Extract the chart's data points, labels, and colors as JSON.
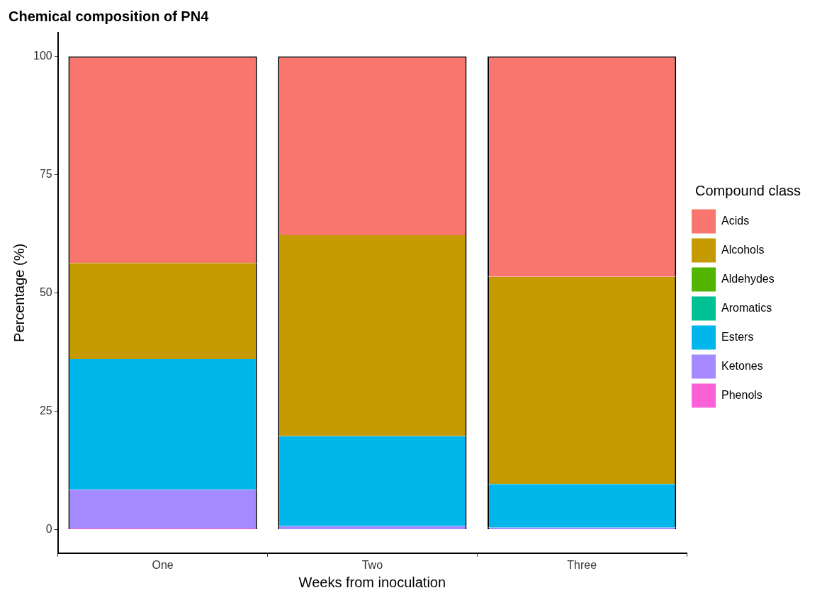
{
  "chart_data": {
    "type": "bar",
    "title": "Chemical composition of PN4",
    "xlabel": "Weeks from inoculation",
    "ylabel": "Percentage (%)",
    "legend_title": "Compound class",
    "categories": [
      "One",
      "Two",
      "Three"
    ],
    "stacked": true,
    "ylim": [
      -5,
      105
    ],
    "yticks": [
      0,
      25,
      50,
      75,
      100
    ],
    "grid": false,
    "legend": "right",
    "series": [
      {
        "name": "Phenols",
        "color": "#fb61d7",
        "values": [
          0.2,
          0,
          0
        ]
      },
      {
        "name": "Ketones",
        "color": "#a58aff",
        "values": [
          8.2,
          0.7,
          0.4
        ]
      },
      {
        "name": "Esters",
        "color": "#00b6eb",
        "values": [
          27.6,
          19.0,
          9.2
        ]
      },
      {
        "name": "Aromatics",
        "color": "#00c094",
        "values": [
          0,
          0,
          0
        ]
      },
      {
        "name": "Aldehydes",
        "color": "#53b400",
        "values": [
          0,
          0,
          0
        ]
      },
      {
        "name": "Alcohols",
        "color": "#c49a00",
        "values": [
          20.3,
          42.5,
          43.8
        ]
      },
      {
        "name": "Acids",
        "color": "#f8766d",
        "values": [
          43.7,
          37.8,
          46.6
        ]
      }
    ]
  }
}
